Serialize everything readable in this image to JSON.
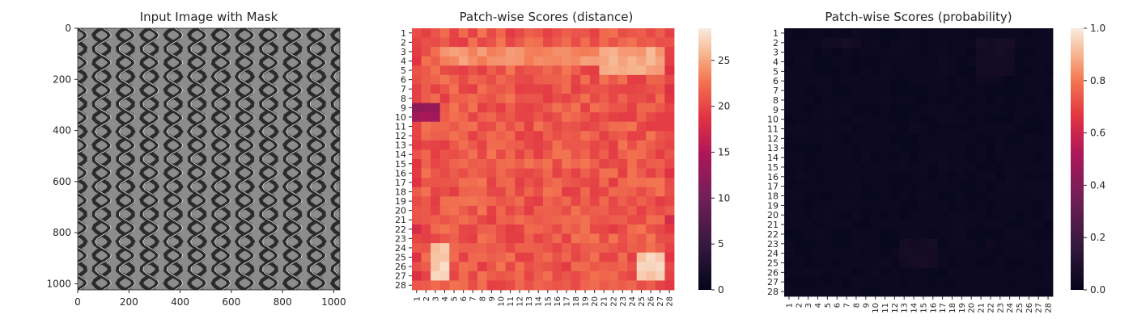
{
  "chart_data": [
    {
      "type": "image",
      "title": "Input Image with Mask",
      "xlim": [
        0,
        1024
      ],
      "ylim": [
        1024,
        0
      ],
      "xticks": [
        0,
        200,
        400,
        600,
        800,
        1000
      ],
      "yticks": [
        0,
        200,
        400,
        600,
        800,
        1000
      ],
      "background_color": "#8c8c8c",
      "pattern_color": "#2b2b2b",
      "highlight_color": "#d9d9d9"
    },
    {
      "type": "heatmap",
      "title": "Patch-wise Scores (distance)",
      "rows": 28,
      "cols": 28,
      "row_labels": [
        "1",
        "2",
        "3",
        "4",
        "5",
        "6",
        "7",
        "8",
        "9",
        "10",
        "11",
        "12",
        "13",
        "14",
        "15",
        "16",
        "17",
        "18",
        "19",
        "20",
        "21",
        "22",
        "23",
        "24",
        "25",
        "26",
        "27",
        "28"
      ],
      "col_labels": [
        "1",
        "2",
        "3",
        "4",
        "5",
        "6",
        "7",
        "8",
        "9",
        "10",
        "11",
        "12",
        "13",
        "14",
        "15",
        "16",
        "17",
        "18",
        "19",
        "20",
        "21",
        "22",
        "23",
        "24",
        "25",
        "26",
        "27",
        "28"
      ],
      "colorbar_range": [
        0,
        28.5
      ],
      "colorbar_ticks": [
        0,
        5,
        10,
        15,
        20,
        25
      ],
      "typical_value": 21,
      "low_region": {
        "rows": [
          9,
          10
        ],
        "cols": [
          1,
          3
        ],
        "value": 13
      },
      "high_regions": [
        {
          "rows": [
            24,
            27
          ],
          "cols": [
            3,
            4
          ],
          "value": 27
        },
        {
          "rows": [
            25,
            27
          ],
          "cols": [
            25,
            27
          ],
          "value": 27
        },
        {
          "rows": [
            3,
            5
          ],
          "cols": [
            21,
            27
          ],
          "value": 25
        },
        {
          "rows": [
            3,
            4
          ],
          "cols": [
            4,
            20
          ],
          "value": 24
        }
      ],
      "colormap": "rocket"
    },
    {
      "type": "heatmap",
      "title": "Patch-wise Scores (probability)",
      "rows": 28,
      "cols": 28,
      "row_labels": [
        "1",
        "2",
        "3",
        "4",
        "5",
        "6",
        "7",
        "8",
        "9",
        "10",
        "11",
        "12",
        "13",
        "14",
        "15",
        "16",
        "17",
        "18",
        "19",
        "20",
        "21",
        "22",
        "23",
        "24",
        "25",
        "26",
        "27",
        "28"
      ],
      "col_labels": [
        "1",
        "2",
        "3",
        "4",
        "5",
        "6",
        "7",
        "8",
        "9",
        "10",
        "11",
        "12",
        "13",
        "14",
        "15",
        "16",
        "17",
        "18",
        "19",
        "20",
        "21",
        "22",
        "23",
        "24",
        "25",
        "26",
        "27",
        "28"
      ],
      "colorbar_range": [
        0,
        1.0
      ],
      "colorbar_ticks": [
        "0.0",
        "0.2",
        "0.4",
        "0.6",
        "0.8",
        "1.0"
      ],
      "typical_value": 0.02,
      "max_value": 0.07,
      "colormap": "rocket"
    }
  ]
}
